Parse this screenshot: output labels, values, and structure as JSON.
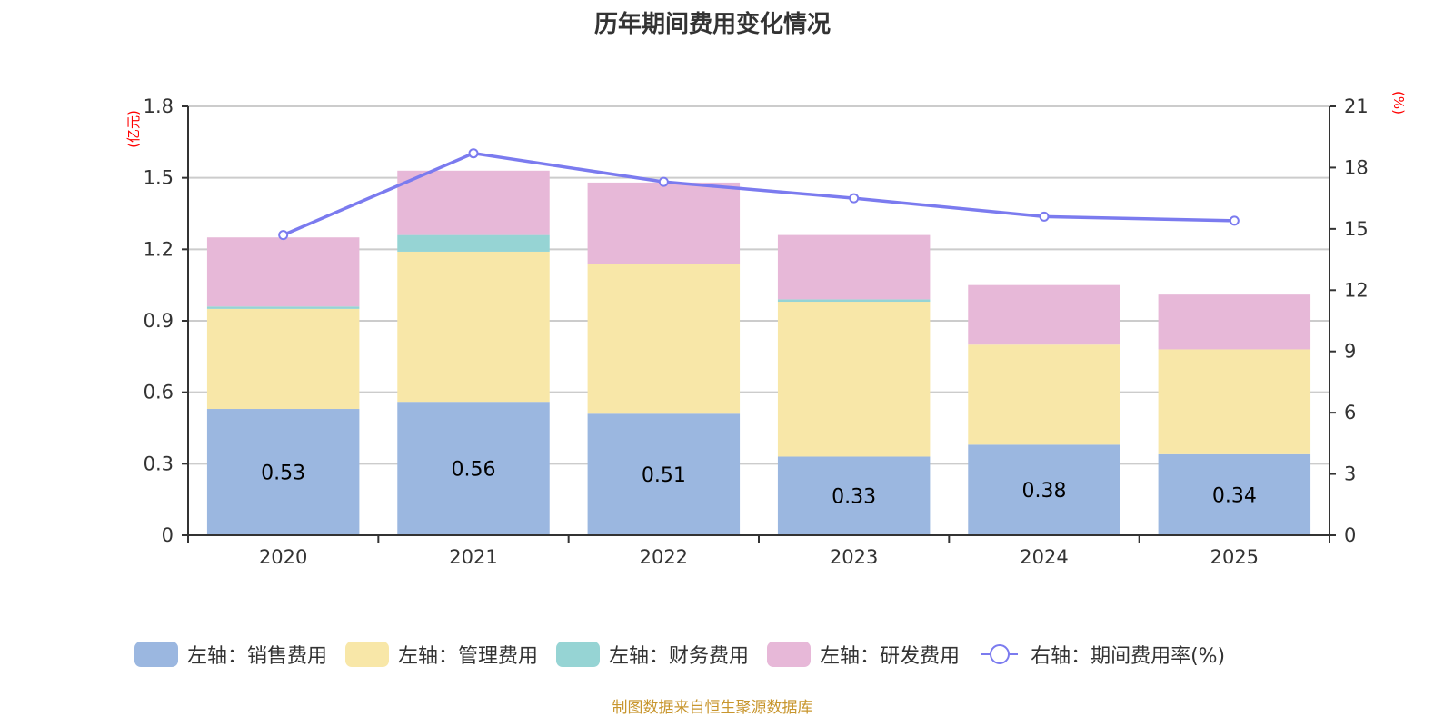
{
  "chart_data": {
    "type": "bar",
    "subtype": "stacked-bar-with-line",
    "title": "历年期间费用变化情况",
    "categories": [
      "2020",
      "2021",
      "2022",
      "2023",
      "2024",
      "2025"
    ],
    "left_axis": {
      "unit_label": "(亿元)",
      "ylim": [
        0,
        1.8
      ],
      "ticks": [
        "0",
        "0.3",
        "0.6",
        "0.9",
        "1.2",
        "1.5",
        "1.8"
      ]
    },
    "right_axis": {
      "unit_label": "(%)",
      "ylim": [
        0,
        21
      ],
      "ticks": [
        "0",
        "3",
        "6",
        "9",
        "12",
        "15",
        "18",
        "21"
      ]
    },
    "grid": true,
    "legend_position": "bottom",
    "series": [
      {
        "name": "左轴：销售费用",
        "axis": "left",
        "type": "bar",
        "color": "#9bb7e0",
        "values": [
          0.53,
          0.56,
          0.51,
          0.33,
          0.38,
          0.34
        ],
        "show_labels": true
      },
      {
        "name": "左轴：管理费用",
        "axis": "left",
        "type": "bar",
        "color": "#f8e7a8",
        "values": [
          0.42,
          0.63,
          0.63,
          0.65,
          0.42,
          0.44
        ],
        "show_labels": false
      },
      {
        "name": "左轴：财务费用",
        "axis": "left",
        "type": "bar",
        "color": "#96d4d4",
        "values": [
          0.01,
          0.07,
          0.0,
          0.01,
          0.0,
          0.0
        ],
        "show_labels": false
      },
      {
        "name": "左轴：研发费用",
        "axis": "left",
        "type": "bar",
        "color": "#e7b8d8",
        "values": [
          0.29,
          0.27,
          0.34,
          0.27,
          0.25,
          0.23
        ],
        "show_labels": false
      },
      {
        "name": "右轴：期间费用率(%)",
        "axis": "right",
        "type": "line",
        "color": "#7b7bef",
        "values": [
          14.7,
          18.7,
          17.3,
          16.5,
          15.6,
          15.4
        ]
      }
    ]
  },
  "source_note": "制图数据来自恒生聚源数据库"
}
